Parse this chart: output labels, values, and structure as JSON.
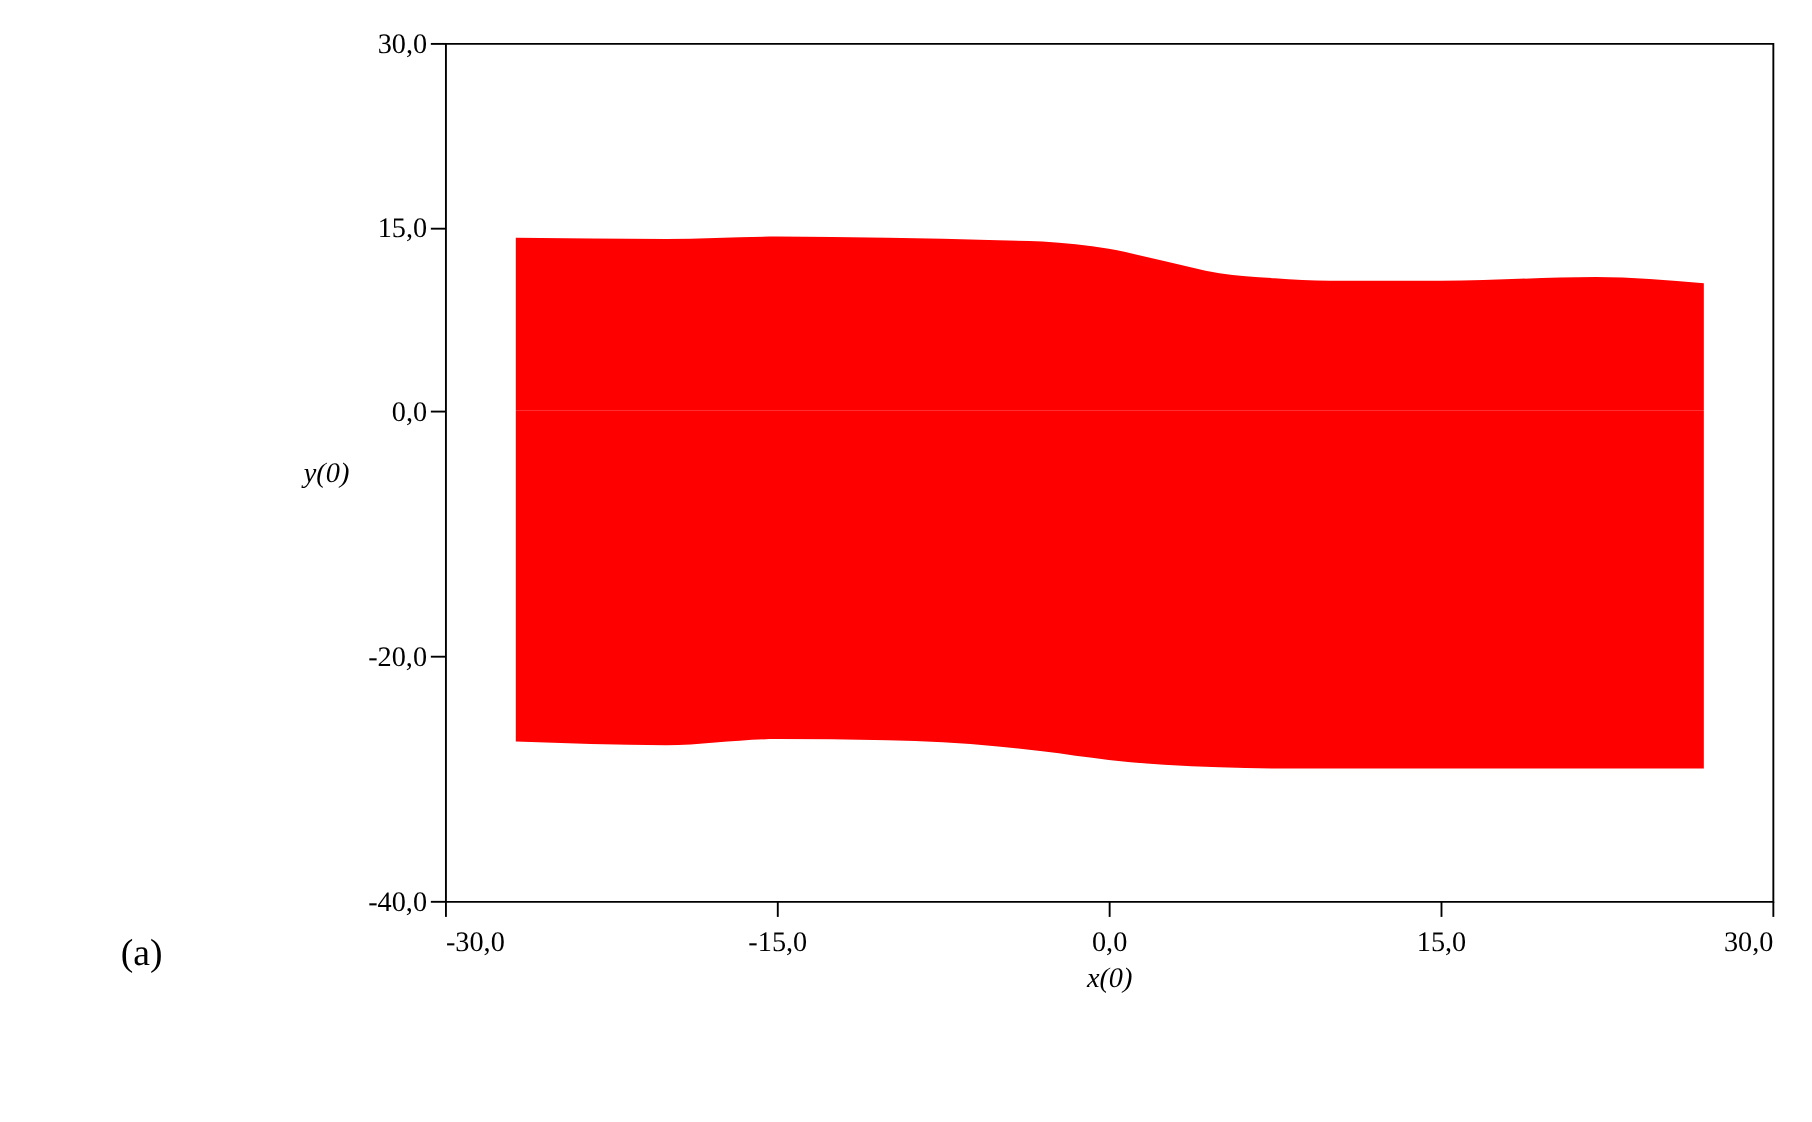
{
  "chart_data": {
    "type": "area",
    "xlabel": "x(0)",
    "ylabel": "y(0)",
    "x": [
      -26.8,
      -20,
      -15,
      -10,
      -5,
      -3,
      0,
      2.5,
      5,
      7.5,
      10,
      15,
      22,
      26.9
    ],
    "series": [
      {
        "color": "#ff0000",
        "values": [
          14.1,
          14.0,
          14.2,
          14.1,
          13.9,
          13.8,
          13.2,
          12.2,
          11.2,
          10.8,
          10.6,
          10.6,
          10.9,
          10.4
        ]
      },
      {
        "color": "#ff0000",
        "values": [
          -27.0,
          -27.3,
          -26.8,
          -26.9,
          -27.4,
          -27.8,
          -28.5,
          -28.9,
          -29.1,
          -29.2,
          -29.2,
          -29.2,
          -29.2,
          -29.2
        ]
      }
    ],
    "xlim": [
      -30,
      30
    ],
    "xticks": [
      {
        "value": -30,
        "label": "-30,0"
      },
      {
        "value": -15,
        "label": "-15,0"
      },
      {
        "value": 0,
        "label": "0,0"
      },
      {
        "value": 15,
        "label": "15,0"
      },
      {
        "value": 30,
        "label": "30,0"
      }
    ],
    "ylim": [
      -40,
      30
    ],
    "yticks": [
      {
        "value": -40,
        "label": "-40,0"
      },
      {
        "value": -20,
        "label": "-20,0"
      },
      {
        "value": 0,
        "label": "0,0"
      },
      {
        "value": 15,
        "label": "15,0"
      },
      {
        "value": 30,
        "label": "30,0"
      }
    ],
    "grid": false,
    "annotations": [
      "(a)"
    ]
  }
}
